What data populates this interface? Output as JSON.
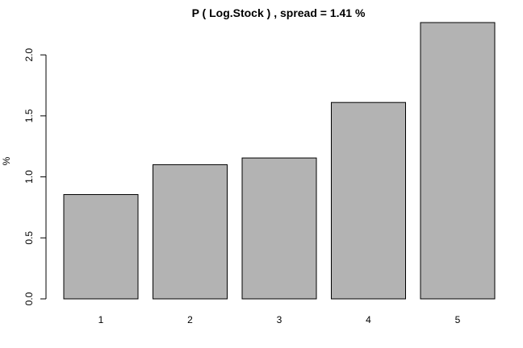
{
  "chart_data": {
    "type": "bar",
    "title": "P ( Log.Stock ) , spread = 1.41 %",
    "xlabel": "",
    "ylabel": "%",
    "categories": [
      "1",
      "2",
      "3",
      "4",
      "5"
    ],
    "values": [
      0.855,
      1.1,
      1.155,
      1.61,
      2.265
    ],
    "ylim": [
      0,
      2.265
    ],
    "yticks": [
      "0.0",
      "0.5",
      "1.0",
      "1.5",
      "2.0"
    ],
    "grid": false,
    "legend": "none",
    "colors": {
      "bar_fill": "#b3b3b3",
      "bar_stroke": "#000000",
      "axis": "#000000"
    }
  }
}
